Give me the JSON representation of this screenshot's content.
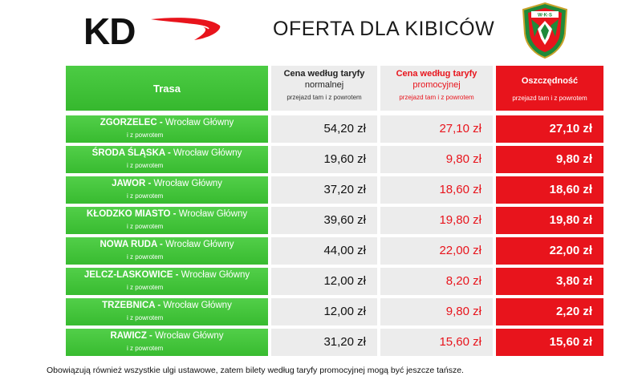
{
  "header": {
    "logo_text": "KD",
    "title": "OFERTA DLA KIBICÓW",
    "crest_text": "W·K·S"
  },
  "columns": {
    "route": "Trasa",
    "normal": {
      "line1": "Cena według taryfy",
      "line2": "normalnej",
      "sub": "przejazd tam i z powrotem"
    },
    "promo": {
      "line1": "Cena według taryfy",
      "line2": "promocyjnej",
      "sub": "przejazd tam i z powrotem"
    },
    "savings": {
      "line1": "Oszczędność",
      "sub": "przejazd tam i z powrotem"
    }
  },
  "rows": [
    {
      "origin": "ZGORZELEC",
      "destination": "Wrocław Główny",
      "sub": "i z powrotem",
      "normal": "54,20 zł",
      "promo": "27,10 zł",
      "savings": "27,10 zł"
    },
    {
      "origin": "ŚRODA ŚLĄSKA",
      "destination": "Wrocław Główny",
      "sub": "i z powrotem",
      "normal": "19,60 zł",
      "promo": "9,80 zł",
      "savings": "9,80 zł"
    },
    {
      "origin": "JAWOR",
      "destination": "Wrocław Główny",
      "sub": "i z powrotem",
      "normal": "37,20 zł",
      "promo": "18,60 zł",
      "savings": "18,60 zł"
    },
    {
      "origin": "KŁODZKO MIASTO",
      "destination": "Wrocław Główny",
      "sub": "i z powrotem",
      "normal": "39,60 zł",
      "promo": "19,80 zł",
      "savings": "19,80 zł"
    },
    {
      "origin": "NOWA RUDA",
      "destination": "Wrocław Główny",
      "sub": "i z powrotem",
      "normal": "44,00 zł",
      "promo": "22,00 zł",
      "savings": "22,00 zł"
    },
    {
      "origin": "JELCZ-LASKOWICE",
      "destination": "Wrocław Główny",
      "sub": "i z powrotem",
      "normal": "12,00 zł",
      "promo": "8,20 zł",
      "savings": "3,80 zł"
    },
    {
      "origin": "TRZEBNICA",
      "destination": "Wrocław Główny",
      "sub": "i z powrotem",
      "normal": "12,00 zł",
      "promo": "9,80 zł",
      "savings": "2,20 zł"
    },
    {
      "origin": "RAWICZ",
      "destination": "Wrocław Główny",
      "sub": "i z powrotem",
      "normal": "31,20 zł",
      "promo": "15,60 zł",
      "savings": "15,60 zł"
    }
  ],
  "footer": "Obowiązują również wszystkie ulgi ustawowe, zatem bilety według taryfy promocyjnej mogą być jeszcze tańsze.",
  "colors": {
    "green": "#3fc236",
    "red": "#e8141c",
    "grey": "#ececec"
  }
}
